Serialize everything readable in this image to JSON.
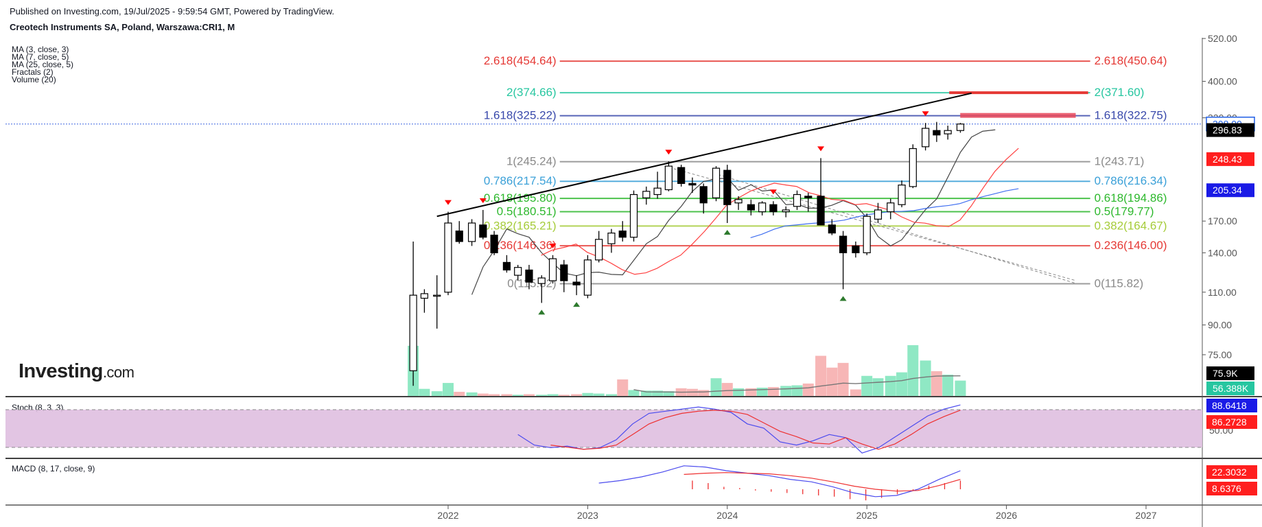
{
  "header": {
    "published": "Published on Investing.com, 19/Jul/2025 - 9:59:54 GMT, Powered by TradingView.",
    "instrument": "Creotech Instruments SA, Poland, Warszawa:CRI1, M"
  },
  "indicators": [
    "MA (3, close, 3)",
    "MA (7, close, 5)",
    "MA (25, close, 5)",
    "Fractals (2)",
    "Volume (20)"
  ],
  "logo": {
    "main": "Investing",
    "suffix": ".com"
  },
  "panels": {
    "stoch_label": "Stoch (8, 3, 3)",
    "macd_label": "MACD (8, 17, close, 9)"
  },
  "colors": {
    "up": "#ffffff",
    "down": "#000000",
    "fib_red": "#e53935",
    "fib_teal": "#26c6a0",
    "fib_blue": "#3949ab",
    "fib_gray": "#8a8a8a",
    "fib_sky": "#3aa0d8",
    "fib_green": "#2db82d",
    "fib_lime": "#a6cc3a",
    "ma_blue": "#3f6ef0",
    "vol_up": "#8fe8c4",
    "vol_down": "#f7b6b6",
    "stoch_band": "#dfbfe0"
  },
  "chart_data": {
    "type": "candlestick",
    "x_axis": {
      "ticks": [
        "2022",
        "2023",
        "2024",
        "2025",
        "2026",
        "2027"
      ]
    },
    "y_axis": {
      "scale": "log",
      "ticks": [
        "520.00",
        "400.00",
        "320.00",
        "170.00",
        "140.00",
        "110.00",
        "90.00",
        "75.00"
      ]
    },
    "price_badges": [
      {
        "label": "308.00",
        "value": 308.0,
        "color": "#1e5ee6",
        "style": "outline"
      },
      {
        "label": "296.83",
        "value": 296.83,
        "color": "#000000",
        "style": "solid"
      },
      {
        "label": "248.43",
        "value": 248.43,
        "color": "#ff1e1e",
        "style": "solid"
      },
      {
        "label": "205.34",
        "value": 205.34,
        "color": "#1a1ae6",
        "style": "solid"
      }
    ],
    "fib_levels": [
      {
        "left": "2.618(454.64)",
        "right": "2.618(450.64)",
        "value": 452.6,
        "color": "#e53935"
      },
      {
        "left": "2(374.66)",
        "right": "2(371.60)",
        "value": 373.1,
        "color": "#26c6a0"
      },
      {
        "left": "1.618(325.22)",
        "right": "1.618(322.75)",
        "value": 324.0,
        "color": "#3949ab"
      },
      {
        "left": "1(245.24)",
        "right": "1(243.71)",
        "value": 244.5,
        "color": "#8a8a8a"
      },
      {
        "left": "0.786(217.54)",
        "right": "0.786(216.34)",
        "value": 216.9,
        "color": "#3aa0d8"
      },
      {
        "left": "0.618(195.80)",
        "right": "0.618(194.86)",
        "value": 195.3,
        "color": "#2db82d"
      },
      {
        "left": "0.5(180.51)",
        "right": "0.5(179.77)",
        "value": 180.1,
        "color": "#2db82d"
      },
      {
        "left": "0.382(165.21)",
        "right": "0.382(164.67)",
        "value": 164.9,
        "color": "#a6cc3a"
      },
      {
        "left": "0.236(146.36)",
        "right": "0.236(146.00)",
        "value": 146.2,
        "color": "#e53935"
      },
      {
        "left": "0(115.82)",
        "right": "0(115.82)",
        "value": 115.82,
        "color": "#8a8a8a"
      }
    ],
    "candles": [
      {
        "t": 2021.75,
        "o": 68,
        "h": 150,
        "l": 62,
        "c": 108
      },
      {
        "t": 2021.83,
        "o": 106,
        "h": 112,
        "l": 97,
        "c": 109
      },
      {
        "t": 2021.92,
        "o": 108,
        "h": 122,
        "l": 88,
        "c": 108
      },
      {
        "t": 2022.0,
        "o": 110,
        "h": 180,
        "l": 108,
        "c": 168
      },
      {
        "t": 2022.08,
        "o": 160,
        "h": 170,
        "l": 148,
        "c": 150
      },
      {
        "t": 2022.17,
        "o": 150,
        "h": 172,
        "l": 146,
        "c": 168
      },
      {
        "t": 2022.25,
        "o": 166,
        "h": 182,
        "l": 152,
        "c": 154
      },
      {
        "t": 2022.33,
        "o": 156,
        "h": 160,
        "l": 138,
        "c": 140
      },
      {
        "t": 2022.42,
        "o": 132,
        "h": 138,
        "l": 124,
        "c": 126
      },
      {
        "t": 2022.5,
        "o": 122,
        "h": 130,
        "l": 118,
        "c": 128
      },
      {
        "t": 2022.58,
        "o": 126,
        "h": 130,
        "l": 112,
        "c": 117
      },
      {
        "t": 2022.67,
        "o": 116,
        "h": 122,
        "l": 103,
        "c": 120
      },
      {
        "t": 2022.75,
        "o": 118,
        "h": 138,
        "l": 116,
        "c": 135
      },
      {
        "t": 2022.83,
        "o": 130,
        "h": 134,
        "l": 110,
        "c": 118
      },
      {
        "t": 2022.92,
        "o": 117,
        "h": 122,
        "l": 108,
        "c": 115
      },
      {
        "t": 2023.0,
        "o": 108,
        "h": 138,
        "l": 106,
        "c": 134
      },
      {
        "t": 2023.08,
        "o": 134,
        "h": 160,
        "l": 132,
        "c": 152
      },
      {
        "t": 2023.17,
        "o": 148,
        "h": 162,
        "l": 140,
        "c": 158
      },
      {
        "t": 2023.25,
        "o": 160,
        "h": 170,
        "l": 150,
        "c": 154
      },
      {
        "t": 2023.33,
        "o": 154,
        "h": 205,
        "l": 150,
        "c": 200
      },
      {
        "t": 2023.42,
        "o": 196,
        "h": 210,
        "l": 188,
        "c": 204
      },
      {
        "t": 2023.5,
        "o": 200,
        "h": 230,
        "l": 195,
        "c": 208
      },
      {
        "t": 2023.58,
        "o": 206,
        "h": 245,
        "l": 204,
        "c": 238
      },
      {
        "t": 2023.67,
        "o": 236,
        "h": 240,
        "l": 210,
        "c": 214
      },
      {
        "t": 2023.75,
        "o": 214,
        "h": 222,
        "l": 202,
        "c": 212
      },
      {
        "t": 2023.83,
        "o": 210,
        "h": 214,
        "l": 178,
        "c": 190
      },
      {
        "t": 2023.92,
        "o": 196,
        "h": 238,
        "l": 192,
        "c": 235
      },
      {
        "t": 2024.0,
        "o": 232,
        "h": 240,
        "l": 168,
        "c": 188
      },
      {
        "t": 2024.08,
        "o": 190,
        "h": 198,
        "l": 182,
        "c": 194
      },
      {
        "t": 2024.17,
        "o": 188,
        "h": 194,
        "l": 176,
        "c": 182
      },
      {
        "t": 2024.25,
        "o": 180,
        "h": 192,
        "l": 176,
        "c": 190
      },
      {
        "t": 2024.33,
        "o": 188,
        "h": 192,
        "l": 176,
        "c": 180
      },
      {
        "t": 2024.42,
        "o": 180,
        "h": 186,
        "l": 174,
        "c": 182
      },
      {
        "t": 2024.5,
        "o": 186,
        "h": 205,
        "l": 182,
        "c": 200
      },
      {
        "t": 2024.58,
        "o": 198,
        "h": 202,
        "l": 180,
        "c": 196
      },
      {
        "t": 2024.67,
        "o": 198,
        "h": 250,
        "l": 166,
        "c": 166
      },
      {
        "t": 2024.75,
        "o": 166,
        "h": 172,
        "l": 156,
        "c": 158
      },
      {
        "t": 2024.83,
        "o": 155,
        "h": 160,
        "l": 112,
        "c": 140
      },
      {
        "t": 2024.92,
        "o": 146,
        "h": 150,
        "l": 136,
        "c": 140
      },
      {
        "t": 2025.0,
        "o": 140,
        "h": 178,
        "l": 138,
        "c": 175
      },
      {
        "t": 2025.08,
        "o": 172,
        "h": 190,
        "l": 168,
        "c": 182
      },
      {
        "t": 2025.17,
        "o": 180,
        "h": 195,
        "l": 172,
        "c": 190
      },
      {
        "t": 2025.25,
        "o": 188,
        "h": 218,
        "l": 185,
        "c": 212
      },
      {
        "t": 2025.33,
        "o": 210,
        "h": 272,
        "l": 208,
        "c": 265
      },
      {
        "t": 2025.42,
        "o": 268,
        "h": 310,
        "l": 262,
        "c": 300
      },
      {
        "t": 2025.5,
        "o": 296,
        "h": 312,
        "l": 276,
        "c": 288
      },
      {
        "t": 2025.58,
        "o": 290,
        "h": 305,
        "l": 280,
        "c": 296
      },
      {
        "t": 2025.67,
        "o": 296,
        "h": 310,
        "l": 292,
        "c": 308
      }
    ],
    "volume": {
      "badges": [
        {
          "label": "75.9K",
          "color": "#000000"
        },
        {
          "label": "56.388K",
          "color": "#26c6a0"
        }
      ],
      "bars": [
        85,
        12,
        8,
        22,
        7,
        6,
        4,
        3,
        3,
        2,
        3,
        2,
        3,
        2,
        3,
        5,
        4,
        3,
        28,
        10,
        9,
        9,
        8,
        13,
        12,
        10,
        30,
        22,
        13,
        13,
        14,
        15,
        17,
        18,
        21,
        68,
        48,
        56,
        11,
        34,
        30,
        34,
        40,
        86,
        60,
        42,
        36,
        26
      ]
    },
    "stoch": {
      "label_values": [
        {
          "label": "88.6418",
          "color": "#1a1ae6"
        },
        {
          "label": "86.2728",
          "color": "#ff1e1e"
        }
      ],
      "k": [
        40,
        20,
        15,
        18,
        12,
        15,
        30,
        60,
        80,
        84,
        88,
        92,
        88,
        82,
        60,
        52,
        26,
        20,
        28,
        40,
        34,
        5,
        15,
        35,
        55,
        75,
        88,
        96
      ],
      "d": [
        null,
        null,
        20,
        16,
        12,
        14,
        20,
        40,
        60,
        72,
        80,
        84,
        86,
        84,
        78,
        62,
        46,
        36,
        24,
        22,
        34,
        22,
        12,
        22,
        40,
        60,
        74,
        86
      ]
    },
    "macd": {
      "label_values": [
        {
          "label": "22.3032",
          "color": "#ff1e1e"
        },
        {
          "label": "8.6376",
          "color": "#ff1e1e"
        }
      ],
      "macd_line": [
        10,
        14,
        20,
        28,
        38,
        36,
        30,
        26,
        22,
        16,
        12,
        4,
        -6,
        -12,
        -10,
        0,
        16,
        30
      ],
      "signal_line": [
        null,
        null,
        null,
        null,
        24,
        26,
        27,
        26,
        25,
        22,
        18,
        12,
        5,
        0,
        -3,
        -2,
        6,
        16
      ],
      "histogram": [
        14,
        10,
        4,
        2,
        -2,
        -4,
        -6,
        -8,
        -10,
        -12,
        -16,
        -18,
        -14,
        -8,
        -2,
        6,
        10,
        14
      ]
    }
  }
}
